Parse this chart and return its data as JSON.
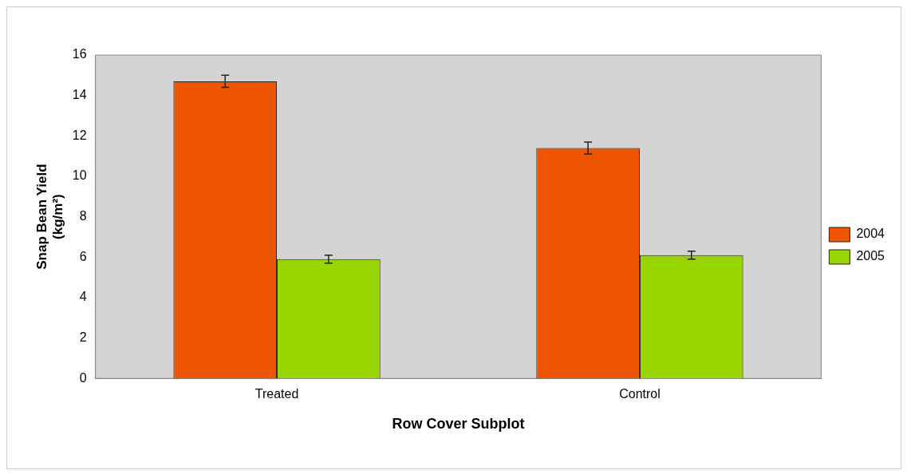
{
  "chart_data": {
    "type": "bar",
    "xlabel": "Row Cover Subplot",
    "ylabel": "Snap Bean Yield (kg/m²)",
    "categories": [
      "Treated",
      "Control"
    ],
    "series": [
      {
        "name": "2004",
        "color": "#ee5500",
        "values": [
          14.7,
          11.4
        ],
        "errors": [
          0.3,
          0.3
        ]
      },
      {
        "name": "2005",
        "color": "#99d500",
        "values": [
          5.9,
          6.1
        ],
        "errors": [
          0.2,
          0.2
        ]
      }
    ],
    "ylim": [
      0,
      16
    ],
    "yticks": [
      0,
      2,
      4,
      6,
      8,
      10,
      12,
      14,
      16
    ],
    "grid": false,
    "legend": "right"
  }
}
